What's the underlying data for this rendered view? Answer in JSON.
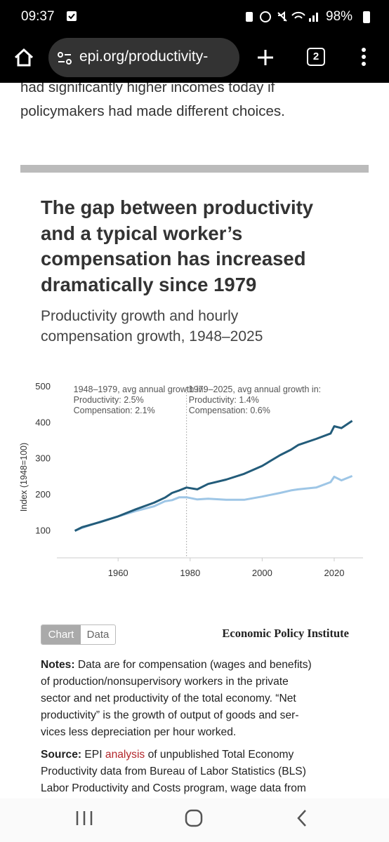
{
  "status_bar": {
    "time": "09:37",
    "battery": "98%"
  },
  "browser": {
    "url": "epi.org/productivity-",
    "tab_count": "2"
  },
  "article": {
    "lines": [
      "had significantly higher incomes today if",
      "policymakers had made different choices."
    ]
  },
  "figure": {
    "chart_data": {
      "type": "line",
      "title_lines": [
        "The gap between productivity",
        "and a typical worker’s",
        "compensation has increased",
        "dramatically since 1979"
      ],
      "subtitle_lines": [
        "Productivity growth and hourly",
        "compensation growth, 1948–2025"
      ],
      "y_label": "Index (1948=100)",
      "x": [
        1948,
        1950,
        1955,
        1960,
        1965,
        1970,
        1973,
        1975,
        1977,
        1979,
        1982,
        1985,
        1990,
        1995,
        2000,
        2005,
        2008,
        2010,
        2015,
        2019,
        2020,
        2022,
        2025
      ],
      "series": [
        {
          "color": "#235c7a",
          "values": [
            100,
            110,
            124,
            140,
            160,
            178,
            192,
            205,
            212,
            220,
            215,
            230,
            242,
            258,
            280,
            310,
            325,
            338,
            355,
            370,
            390,
            385,
            405
          ]
        },
        {
          "color": "#9ec6e6",
          "values": [
            100,
            108,
            125,
            140,
            155,
            168,
            182,
            185,
            193,
            193,
            187,
            189,
            186,
            186,
            195,
            205,
            212,
            215,
            220,
            235,
            250,
            240,
            252
          ]
        }
      ],
      "xlim": [
        1943,
        2028
      ],
      "ylim": [
        25,
        500
      ],
      "xticks": [
        1960,
        1980,
        2000,
        2020
      ],
      "yticks": [
        100,
        200,
        300,
        400,
        500
      ],
      "grid": false,
      "divider_x": 1979,
      "annotations": [
        {
          "x": 1948,
          "lines": [
            "1948–1979, avg annual growth in:",
            "Productivity: 2.5%",
            "Compensation: 2.1%"
          ]
        },
        {
          "x": 1980,
          "lines": [
            "1979–2025, avg annual growth in:",
            "Productivity: 1.4%",
            "Compensation: 0.6%"
          ]
        }
      ]
    },
    "tabs": [
      "Chart",
      "Data"
    ],
    "brand": "Economic Policy Institute",
    "notes": {
      "label": "Notes:",
      "lines": [
        "Data are for compensation (wages and benefits)",
        "of production/nonsupervisory workers in the private",
        "sector and net productivity of the total economy. “Net",
        "productivity” is the growth of output of goods and ser-",
        "vices less depreciation per hour worked."
      ]
    },
    "source": {
      "label": "Source:",
      "first": [
        "EPI",
        "analysis",
        "of unpublished Total Economy"
      ],
      "lines": [
        "Productivity data from Bureau of Labor Statistics (BLS)",
        "Labor Productivity and Costs program, wage data from"
      ]
    }
  }
}
